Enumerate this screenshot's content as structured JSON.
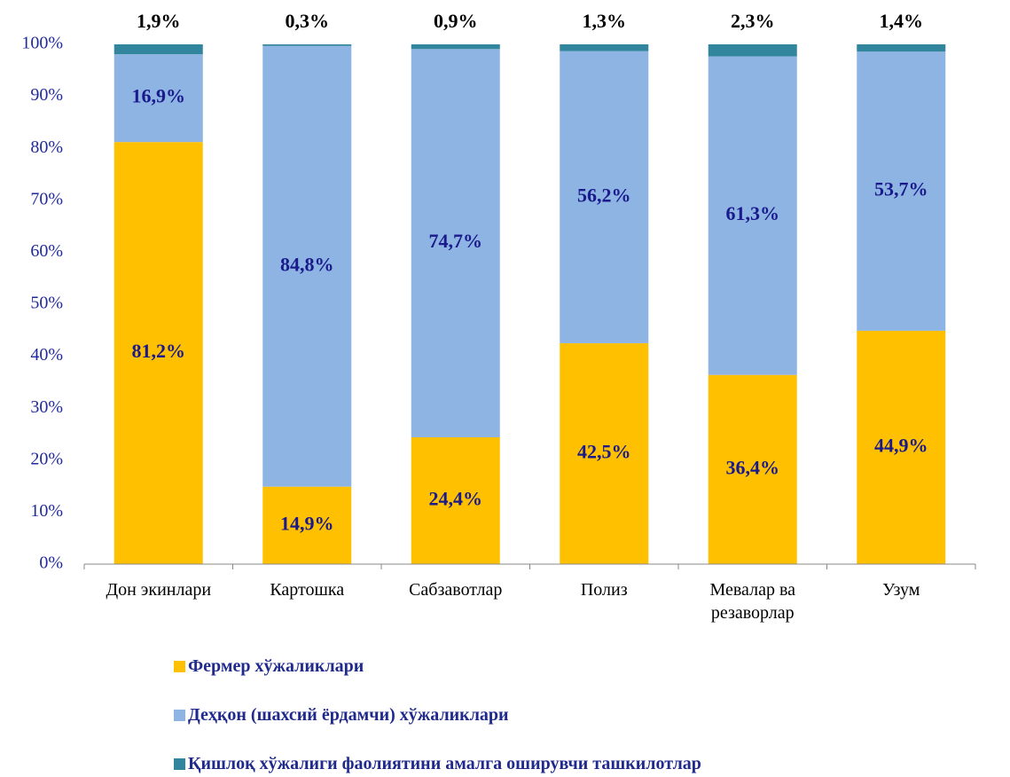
{
  "chart_data": {
    "type": "stacked_bar",
    "categories": [
      "Дон экинлари",
      "Картошка",
      "Сабзавотлар",
      "Полиз",
      "Мевалар ва резаворлар",
      "Узум"
    ],
    "series": [
      {
        "name": "Фермер хўжаликлари",
        "color": "#FFC000",
        "values": [
          81.2,
          14.9,
          24.4,
          42.5,
          36.4,
          44.9
        ],
        "value_labels": [
          "81,2%",
          "14,9%",
          "24,4%",
          "42,5%",
          "36,4%",
          "44,9%"
        ]
      },
      {
        "name": "Деҳқон (шахсий ёрдамчи) хўжаликлари",
        "color": "#8EB4E3",
        "values": [
          16.9,
          84.8,
          74.7,
          56.2,
          61.3,
          53.7
        ],
        "value_labels": [
          "16,9%",
          "84,8%",
          "74,7%",
          "56,2%",
          "61,3%",
          "53,7%"
        ]
      },
      {
        "name": "Қишлоқ хўжалиги фаолиятини амалга оширувчи ташкилотлар",
        "color": "#31859C",
        "values": [
          1.9,
          0.3,
          0.9,
          1.3,
          2.3,
          1.4
        ],
        "value_labels": [
          "1,9%",
          "0,3%",
          "0,9%",
          "1,3%",
          "2,3%",
          "1,4%"
        ]
      }
    ],
    "ylim": [
      0,
      100
    ],
    "yticks": [
      {
        "value": 0,
        "label": "0%"
      },
      {
        "value": 10,
        "label": "10%"
      },
      {
        "value": 20,
        "label": "20%"
      },
      {
        "value": 30,
        "label": "30%"
      },
      {
        "value": 40,
        "label": "40%"
      },
      {
        "value": 50,
        "label": "50%"
      },
      {
        "value": 60,
        "label": "60%"
      },
      {
        "value": 70,
        "label": "70%"
      },
      {
        "value": 80,
        "label": "80%"
      },
      {
        "value": 90,
        "label": "90%"
      },
      {
        "value": 100,
        "label": "100%"
      }
    ],
    "grid": false,
    "legend": "bottom"
  }
}
